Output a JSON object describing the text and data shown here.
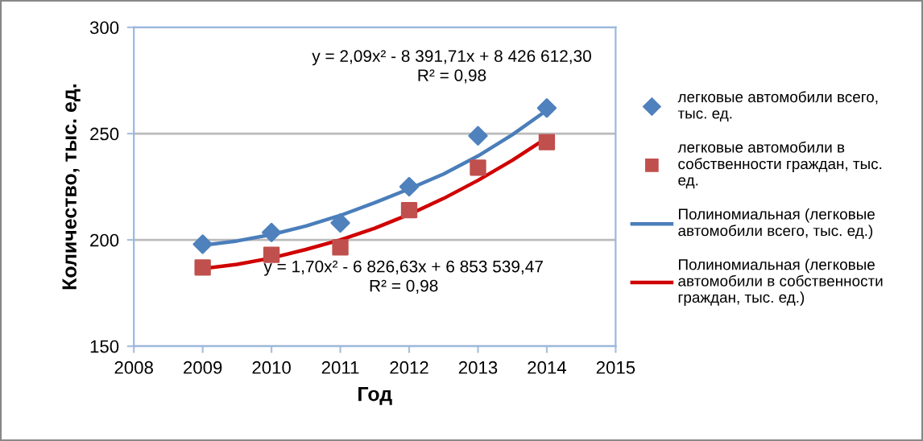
{
  "chart_data": {
    "type": "scatter",
    "xlabel": "Год",
    "ylabel": "Количество, тыс. ед.",
    "xlim": [
      2008,
      2015
    ],
    "xticks": [
      2008,
      2009,
      2010,
      2011,
      2012,
      2013,
      2014,
      2015
    ],
    "ylim": [
      150,
      300
    ],
    "yticks": [
      150,
      200,
      250,
      300
    ],
    "grid": "y",
    "legend": "right",
    "series": [
      {
        "name": "легковые автомобили всего, тыс. ед.",
        "marker": "diamond",
        "color": "#4f81bd",
        "x": [
          2009,
          2010,
          2011,
          2012,
          2013,
          2014
        ],
        "values": [
          198,
          203.5,
          208,
          225,
          249,
          262
        ]
      },
      {
        "name": "легковые автомобили в собственности граждан, тыс. ед.",
        "marker": "square",
        "color": "#c0504d",
        "x": [
          2009,
          2010,
          2011,
          2012,
          2013,
          2014
        ],
        "values": [
          187,
          193,
          196.5,
          214,
          234,
          246
        ]
      },
      {
        "name": "Полиномиальная (легковые автомобили всего, тыс. ед.)",
        "type": "line",
        "marker": "none",
        "color": "#4a7ebb",
        "x": [
          2009,
          2009.5,
          2010,
          2010.5,
          2011,
          2011.5,
          2012,
          2012.5,
          2013,
          2013.5,
          2014
        ],
        "values": [
          197.5,
          199.5,
          202.5,
          206.5,
          211.5,
          217.5,
          224,
          231,
          239.5,
          249.5,
          261
        ]
      },
      {
        "name": "Полиномиальная (легковые автомобили в собственности граждан, тыс. ед.)",
        "type": "line",
        "marker": "none",
        "color": "#d00000",
        "x": [
          2009,
          2009.5,
          2010,
          2010.5,
          2011,
          2011.5,
          2012,
          2012.5,
          2013,
          2013.5,
          2014
        ],
        "values": [
          186.5,
          188.5,
          191.5,
          195.5,
          200,
          205.5,
          212,
          219.5,
          228,
          237.5,
          248
        ]
      }
    ],
    "annotations": [
      "y = 2,09x² - 8 391,71x + 8 426 612,30\nR² = 0,98",
      "y = 1,70x² - 6 826,63x + 6 853 539,47\nR² = 0,98"
    ]
  }
}
